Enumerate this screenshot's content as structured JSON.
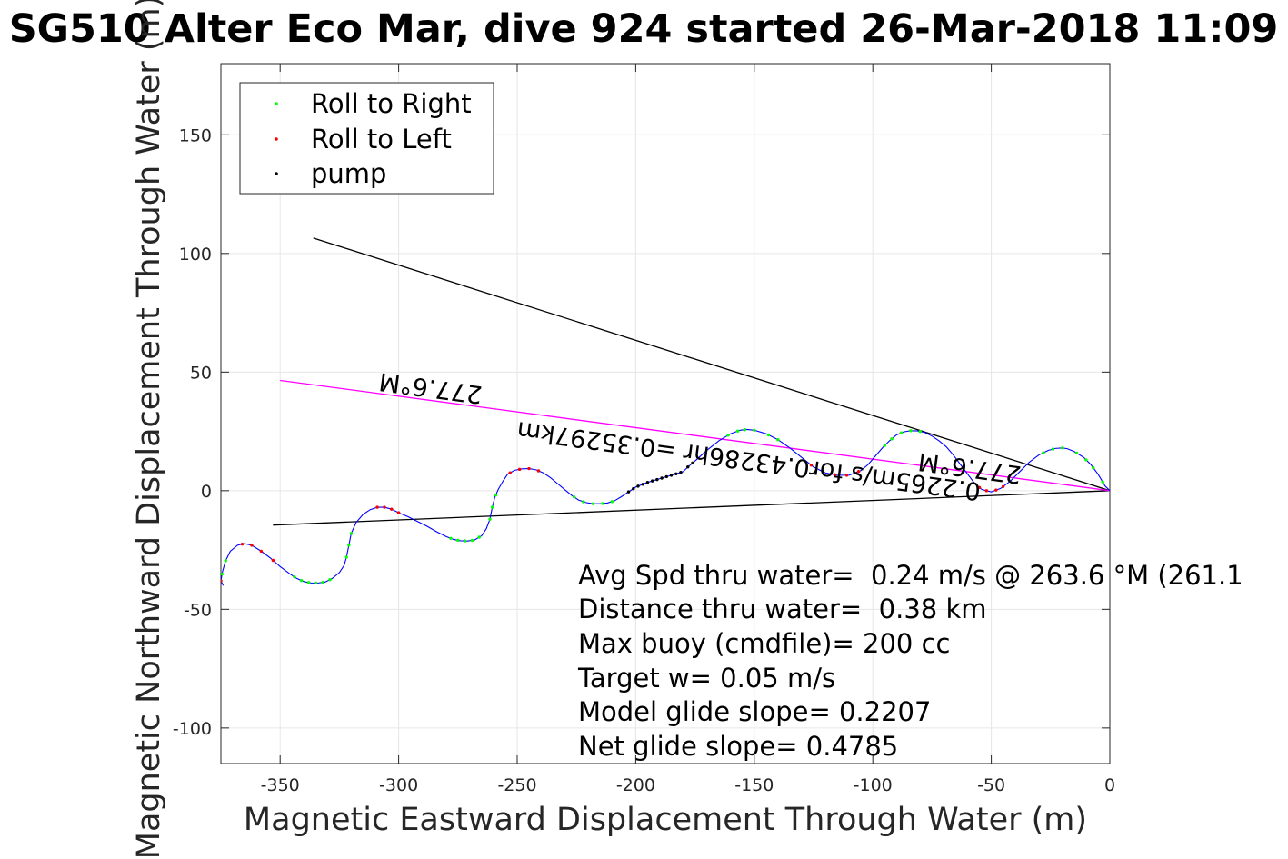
{
  "chart_data": {
    "type": "line",
    "title": "SG510 Alter Eco Mar, dive 924 started 26-Mar-2018 11:09",
    "xlabel": "Magnetic Eastward Displacement Through Water (m)",
    "ylabel": "Magnetic Northward Displacement Through Water (m)",
    "xlim": [
      -375,
      0
    ],
    "ylim": [
      -115,
      180
    ],
    "xticks": [
      -350,
      -300,
      -250,
      -200,
      -150,
      -100,
      -50,
      0
    ],
    "yticks": [
      -100,
      -50,
      0,
      50,
      100,
      150
    ],
    "grid": true,
    "legend": {
      "location": "top-left",
      "entries": [
        {
          "label": "Roll to Right",
          "color": "#00ff00"
        },
        {
          "label": "Roll to Left",
          "color": "#ff0000"
        },
        {
          "label": "pump",
          "color": "#000000"
        }
      ]
    },
    "track": {
      "name": "track",
      "color": "#0000ff",
      "points": [
        [
          0,
          0
        ],
        [
          -2,
          2
        ],
        [
          -5,
          7
        ],
        [
          -8,
          11
        ],
        [
          -11,
          14
        ],
        [
          -15,
          16.5
        ],
        [
          -18,
          17.7
        ],
        [
          -20,
          18
        ],
        [
          -23,
          17.8
        ],
        [
          -26,
          17
        ],
        [
          -30,
          15
        ],
        [
          -34,
          12
        ],
        [
          -38,
          8
        ],
        [
          -42,
          4
        ],
        [
          -46,
          1
        ],
        [
          -50,
          -0.5
        ],
        [
          -54,
          0.5
        ],
        [
          -57,
          3
        ],
        [
          -60,
          7
        ],
        [
          -63,
          11
        ],
        [
          -66,
          15
        ],
        [
          -69,
          18.5
        ],
        [
          -72,
          21
        ],
        [
          -75,
          23
        ],
        [
          -78,
          24.5
        ],
        [
          -81,
          25.2
        ],
        [
          -84,
          25.3
        ],
        [
          -87,
          24.8
        ],
        [
          -90,
          23.5
        ],
        [
          -93,
          21
        ],
        [
          -96,
          18
        ],
        [
          -99,
          14.5
        ],
        [
          -102,
          11
        ],
        [
          -105,
          8.5
        ],
        [
          -110,
          6.5
        ],
        [
          -115,
          6.5
        ],
        [
          -120,
          7.5
        ],
        [
          -125,
          10
        ],
        [
          -130,
          14
        ],
        [
          -135,
          18
        ],
        [
          -140,
          21.5
        ],
        [
          -145,
          24
        ],
        [
          -150,
          25.5
        ],
        [
          -153,
          25.8
        ],
        [
          -156,
          25.5
        ],
        [
          -160,
          24
        ],
        [
          -165,
          21
        ],
        [
          -170,
          17
        ],
        [
          -175,
          12.5
        ],
        [
          -178,
          10
        ],
        [
          -180,
          8
        ],
        [
          -185,
          6.5
        ],
        [
          -190,
          5
        ],
        [
          -195,
          3.5
        ],
        [
          -200,
          1.5
        ],
        [
          -203,
          -0.5
        ],
        [
          -206,
          -2.5
        ],
        [
          -209,
          -4.3
        ],
        [
          -212,
          -5.2
        ],
        [
          -215,
          -5.5
        ],
        [
          -218,
          -5.5
        ],
        [
          -221,
          -5
        ],
        [
          -224,
          -4
        ],
        [
          -227,
          -2
        ],
        [
          -230,
          0.5
        ],
        [
          -233,
          3
        ],
        [
          -236,
          5.5
        ],
        [
          -239,
          7.5
        ],
        [
          -242,
          8.8
        ],
        [
          -245,
          9.3
        ],
        [
          -248,
          9.2
        ],
        [
          -251,
          8.6
        ],
        [
          -254,
          7
        ],
        [
          -256,
          4
        ],
        [
          -258,
          0.5
        ],
        [
          -259.5,
          -3
        ],
        [
          -260.5,
          -7
        ],
        [
          -261.5,
          -12
        ],
        [
          -263,
          -16
        ],
        [
          -265,
          -19
        ],
        [
          -268,
          -20.8
        ],
        [
          -271,
          -21.2
        ],
        [
          -274,
          -21.1
        ],
        [
          -277,
          -20.5
        ],
        [
          -280,
          -19.3
        ],
        [
          -284,
          -17.3
        ],
        [
          -288,
          -15
        ],
        [
          -292,
          -13
        ],
        [
          -296,
          -11
        ],
        [
          -300,
          -9.3
        ],
        [
          -303,
          -7.8
        ],
        [
          -306,
          -7
        ],
        [
          -309,
          -7
        ],
        [
          -312,
          -8
        ],
        [
          -315,
          -10
        ],
        [
          -318,
          -13.5
        ],
        [
          -320,
          -18
        ],
        [
          -321,
          -23
        ],
        [
          -322,
          -28
        ],
        [
          -323,
          -31.5
        ],
        [
          -325,
          -34.5
        ],
        [
          -328,
          -37
        ],
        [
          -331,
          -38.5
        ],
        [
          -334,
          -38.9
        ],
        [
          -337,
          -38.9
        ],
        [
          -340,
          -38.3
        ],
        [
          -343,
          -37
        ],
        [
          -346,
          -35
        ],
        [
          -350,
          -32
        ],
        [
          -354,
          -28.5
        ],
        [
          -358,
          -25.5
        ],
        [
          -362,
          -23
        ],
        [
          -365,
          -22.3
        ],
        [
          -368,
          -23
        ],
        [
          -371,
          -25.5
        ],
        [
          -373,
          -29.5
        ],
        [
          -374.3,
          -34
        ],
        [
          -375,
          -38
        ],
        [
          -374,
          -40
        ]
      ]
    },
    "markers": {
      "roll_right_x": [
        -3,
        -7,
        -10,
        -14,
        -20,
        -24,
        -28,
        -80,
        -84,
        -88,
        -92,
        -95,
        -140,
        -144,
        -150,
        -154,
        -157,
        -161,
        -210,
        -214,
        -218,
        -222,
        -226,
        -259,
        -260.5,
        -261.5,
        -266,
        -269,
        -272,
        -275,
        -278,
        -320,
        -321,
        -322,
        -329,
        -332,
        -335,
        -338,
        -341,
        -344,
        -373,
        -374.5
      ],
      "roll_left_x": [
        -45,
        -48,
        -52,
        -55,
        -106,
        -111,
        -116,
        -121,
        -126,
        -241,
        -245,
        -249,
        -253,
        -300,
        -303,
        -306,
        -309,
        -353,
        -358,
        -362,
        -366,
        -375
      ],
      "pump_x": [
        -181,
        -183,
        -185,
        -187,
        -189,
        -191,
        -193,
        -195,
        -197,
        -199,
        -201,
        -203,
        -176,
        -178
      ]
    },
    "lines": [
      {
        "name": "black-line-1",
        "color": "#000000",
        "points": [
          [
            -336,
            106.5
          ],
          [
            0,
            0
          ]
        ]
      },
      {
        "name": "black-line-2",
        "color": "#000000",
        "points": [
          [
            -353,
            -14.5
          ],
          [
            0,
            0
          ]
        ]
      },
      {
        "name": "current-line",
        "color": "#ff00ff",
        "points": [
          [
            -350,
            46.5
          ],
          [
            0,
            0
          ]
        ]
      }
    ],
    "annotations": {
      "heading_1": "277.6°M",
      "current": "0.2265m/s for0.43286hr =0.35297km",
      "heading_2": "277.6°M"
    },
    "stats": [
      "Avg Spd thru water=  0.24 m/s @ 263.6 °M (261.1",
      "Distance thru water=  0.38 km",
      "Max buoy (cmdfile)= 200 cc",
      "Target w= 0.05 m/s",
      "Model glide slope= 0.2207",
      "Net glide slope= 0.4785"
    ]
  }
}
